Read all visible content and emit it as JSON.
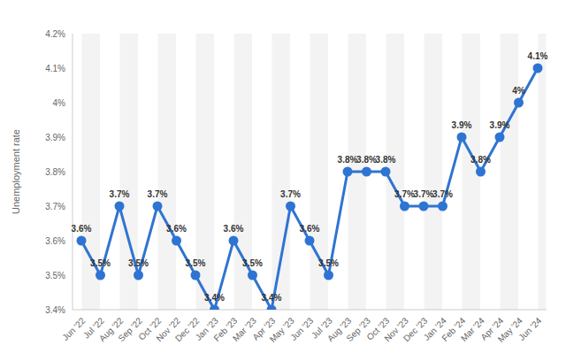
{
  "chart_data": {
    "type": "line",
    "y_label": "Unemployment rate",
    "categories": [
      "Jun '22",
      "Jul '22",
      "Aug '22",
      "Sep '22",
      "Oct '22",
      "Nov '22",
      "Dec '22",
      "Jan '23",
      "Feb '23",
      "Mar '23",
      "Apr '23",
      "May '23",
      "Jun '23",
      "Jul '23",
      "Aug '23",
      "Sep '23",
      "Oct '23",
      "Nov '23",
      "Dec '23",
      "Jan '24",
      "Feb '24",
      "Mar '24",
      "Apr '24",
      "May '24",
      "Jun '24"
    ],
    "values": [
      3.6,
      3.5,
      3.7,
      3.5,
      3.7,
      3.6,
      3.5,
      3.4,
      3.6,
      3.5,
      3.4,
      3.7,
      3.6,
      3.5,
      3.8,
      3.8,
      3.8,
      3.7,
      3.7,
      3.7,
      3.9,
      3.8,
      3.9,
      4,
      4.1
    ],
    "value_labels": [
      "3.6%",
      "3.5%",
      "3.7%",
      "3.5%",
      "3.7%",
      "3.6%",
      "3.5%",
      "3.4%",
      "3.6%",
      "3.5%",
      "3.4%",
      "3.7%",
      "3.6%",
      "3.5%",
      "3.8%",
      "3.8%",
      "3.8%",
      "3.7%",
      "3.7%",
      "3.7%",
      "3.9%",
      "3.8%",
      "3.9%",
      "4%",
      "4.1%"
    ],
    "data_labels": true,
    "color": "#2f74d2",
    "marker": "circle",
    "ylim": [
      3.4,
      4.2
    ],
    "yticks": [
      {
        "value": 3.4,
        "label": "3.4%"
      },
      {
        "value": 3.5,
        "label": "3.5%"
      },
      {
        "value": 3.6,
        "label": "3.6%"
      },
      {
        "value": 3.7,
        "label": "3.7%"
      },
      {
        "value": 3.8,
        "label": "3.8%"
      },
      {
        "value": 3.9,
        "label": "3.9%"
      },
      {
        "value": 4,
        "label": "4%"
      },
      {
        "value": 4.1,
        "label": "4.1%"
      },
      {
        "value": 4.2,
        "label": "4.2%"
      }
    ],
    "grid": true
  }
}
